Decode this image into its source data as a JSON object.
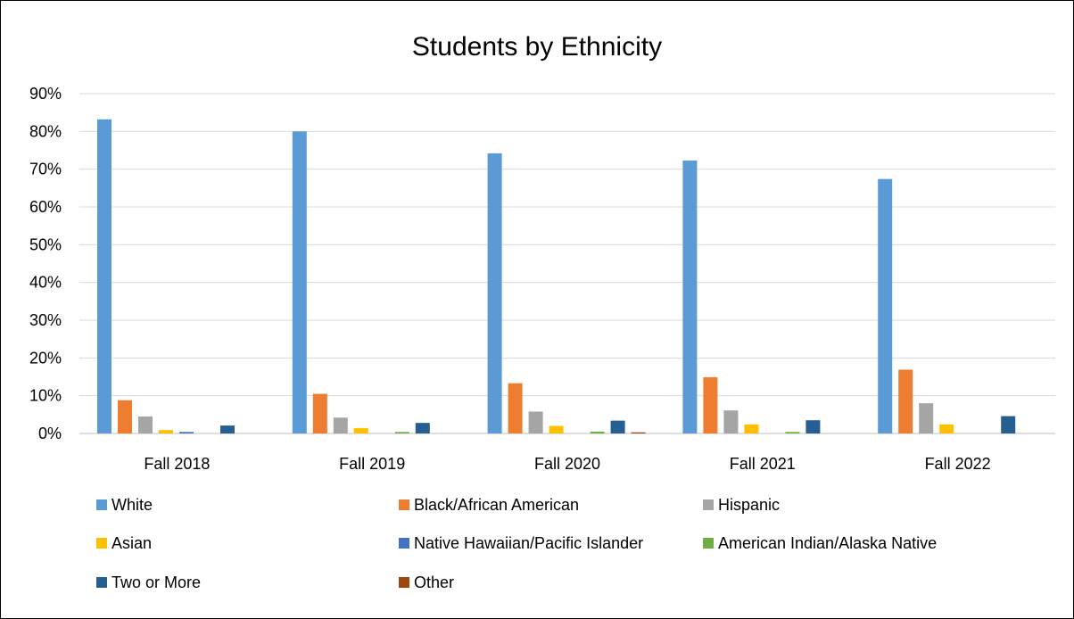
{
  "chart_data": {
    "type": "bar",
    "title": "Students by Ethnicity",
    "xlabel": "",
    "ylabel": "",
    "ylim": [
      0,
      90
    ],
    "y_ticks": [
      "0%",
      "10%",
      "20%",
      "30%",
      "40%",
      "50%",
      "60%",
      "70%",
      "80%",
      "90%"
    ],
    "y_tick_values": [
      0,
      10,
      20,
      30,
      40,
      50,
      60,
      70,
      80,
      90
    ],
    "grid": true,
    "legend_position": "bottom",
    "categories": [
      "Fall 2018",
      "Fall 2019",
      "Fall 2020",
      "Fall 2021",
      "Fall 2022"
    ],
    "series": [
      {
        "name": "White",
        "color": "#5b9bd5",
        "values": [
          83.2,
          80.0,
          74.2,
          72.3,
          67.4
        ]
      },
      {
        "name": "Black/African American",
        "color": "#ed7d31",
        "values": [
          8.8,
          10.5,
          13.3,
          14.9,
          16.9
        ]
      },
      {
        "name": "Hispanic",
        "color": "#a5a5a5",
        "values": [
          4.5,
          4.2,
          5.8,
          6.1,
          8.0
        ]
      },
      {
        "name": "Asian",
        "color": "#ffc000",
        "values": [
          0.9,
          1.4,
          2.0,
          2.4,
          2.4
        ]
      },
      {
        "name": "Native Hawaiian/Pacific Islander",
        "color": "#4472c4",
        "values": [
          0.4,
          0.0,
          0.0,
          0.0,
          0.0
        ]
      },
      {
        "name": "American Indian/Alaska Native",
        "color": "#70ad47",
        "values": [
          0.0,
          0.4,
          0.5,
          0.4,
          0.0
        ]
      },
      {
        "name": "Two or More",
        "color": "#255e91",
        "values": [
          2.1,
          2.8,
          3.4,
          3.5,
          4.6
        ]
      },
      {
        "name": "Other",
        "color": "#9e480e",
        "values": [
          0.0,
          0.0,
          0.3,
          0.0,
          0.0
        ]
      }
    ]
  }
}
